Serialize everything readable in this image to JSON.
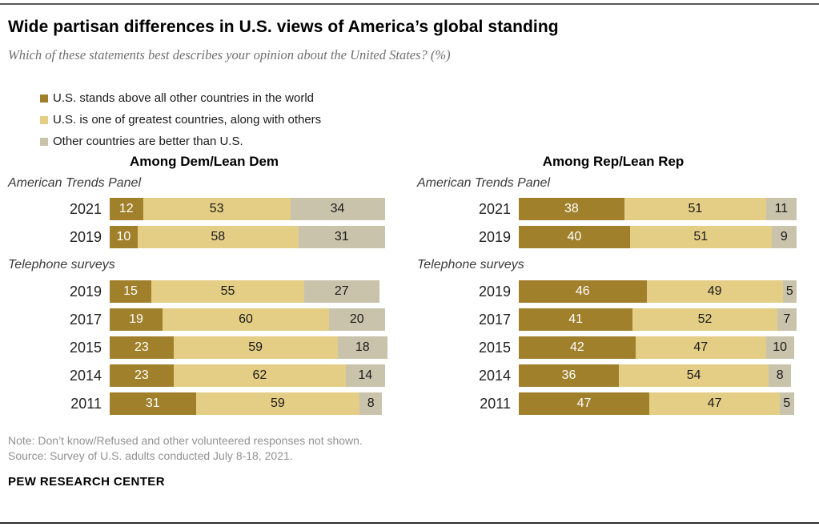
{
  "page": {
    "title": "Wide partisan differences in U.S. views of America’s global standing",
    "subtitle": "Which of these statements best describes your opinion about the United States? (%)",
    "note": "Note: Don’t know/Refused and other volunteered responses not shown.",
    "source": "Source: Survey of U.S. adults conducted July 8-18, 2021.",
    "brand": "PEW RESEARCH CENTER"
  },
  "legend": {
    "items": [
      {
        "label": "U.S. stands above all other countries in the world",
        "color": "#a0802b"
      },
      {
        "label": "U.S. is one of greatest countries, along with others",
        "color": "#e4ce85"
      },
      {
        "label": "Other countries are better than U.S.",
        "color": "#c9c3ac"
      }
    ]
  },
  "chart_data": {
    "type": "bar",
    "orientation": "horizontal-stacked",
    "unit": "%",
    "xlim": [
      0,
      100
    ],
    "series_names": [
      "U.S. stands above all other countries in the world",
      "U.S. is one of greatest countries, along with others",
      "Other countries are better than U.S."
    ],
    "colors": [
      "#a0802b",
      "#e4ce85",
      "#c9c3ac"
    ],
    "value_label_colors": [
      "#ffffff",
      "#1a1a1a",
      "#1a1a1a"
    ],
    "panels": [
      {
        "title": "Among Dem/Lean Dem",
        "sections": [
          {
            "label": "American Trends Panel",
            "rows": [
              {
                "year": "2021",
                "values": [
                  12,
                  53,
                  34
                ]
              },
              {
                "year": "2019",
                "values": [
                  10,
                  58,
                  31
                ]
              }
            ]
          },
          {
            "label": "Telephone surveys",
            "rows": [
              {
                "year": "2019",
                "values": [
                  15,
                  55,
                  27
                ]
              },
              {
                "year": "2017",
                "values": [
                  19,
                  60,
                  20
                ]
              },
              {
                "year": "2015",
                "values": [
                  23,
                  59,
                  18
                ]
              },
              {
                "year": "2014",
                "values": [
                  23,
                  62,
                  14
                ]
              },
              {
                "year": "2011",
                "values": [
                  31,
                  59,
                  8
                ]
              }
            ]
          }
        ]
      },
      {
        "title": "Among Rep/Lean Rep",
        "sections": [
          {
            "label": "American Trends Panel",
            "rows": [
              {
                "year": "2021",
                "values": [
                  38,
                  51,
                  11
                ]
              },
              {
                "year": "2019",
                "values": [
                  40,
                  51,
                  9
                ]
              }
            ]
          },
          {
            "label": "Telephone surveys",
            "rows": [
              {
                "year": "2019",
                "values": [
                  46,
                  49,
                  5
                ]
              },
              {
                "year": "2017",
                "values": [
                  41,
                  52,
                  7
                ]
              },
              {
                "year": "2015",
                "values": [
                  42,
                  47,
                  10
                ]
              },
              {
                "year": "2014",
                "values": [
                  36,
                  54,
                  8
                ]
              },
              {
                "year": "2011",
                "values": [
                  47,
                  47,
                  5
                ]
              }
            ]
          }
        ]
      }
    ]
  }
}
